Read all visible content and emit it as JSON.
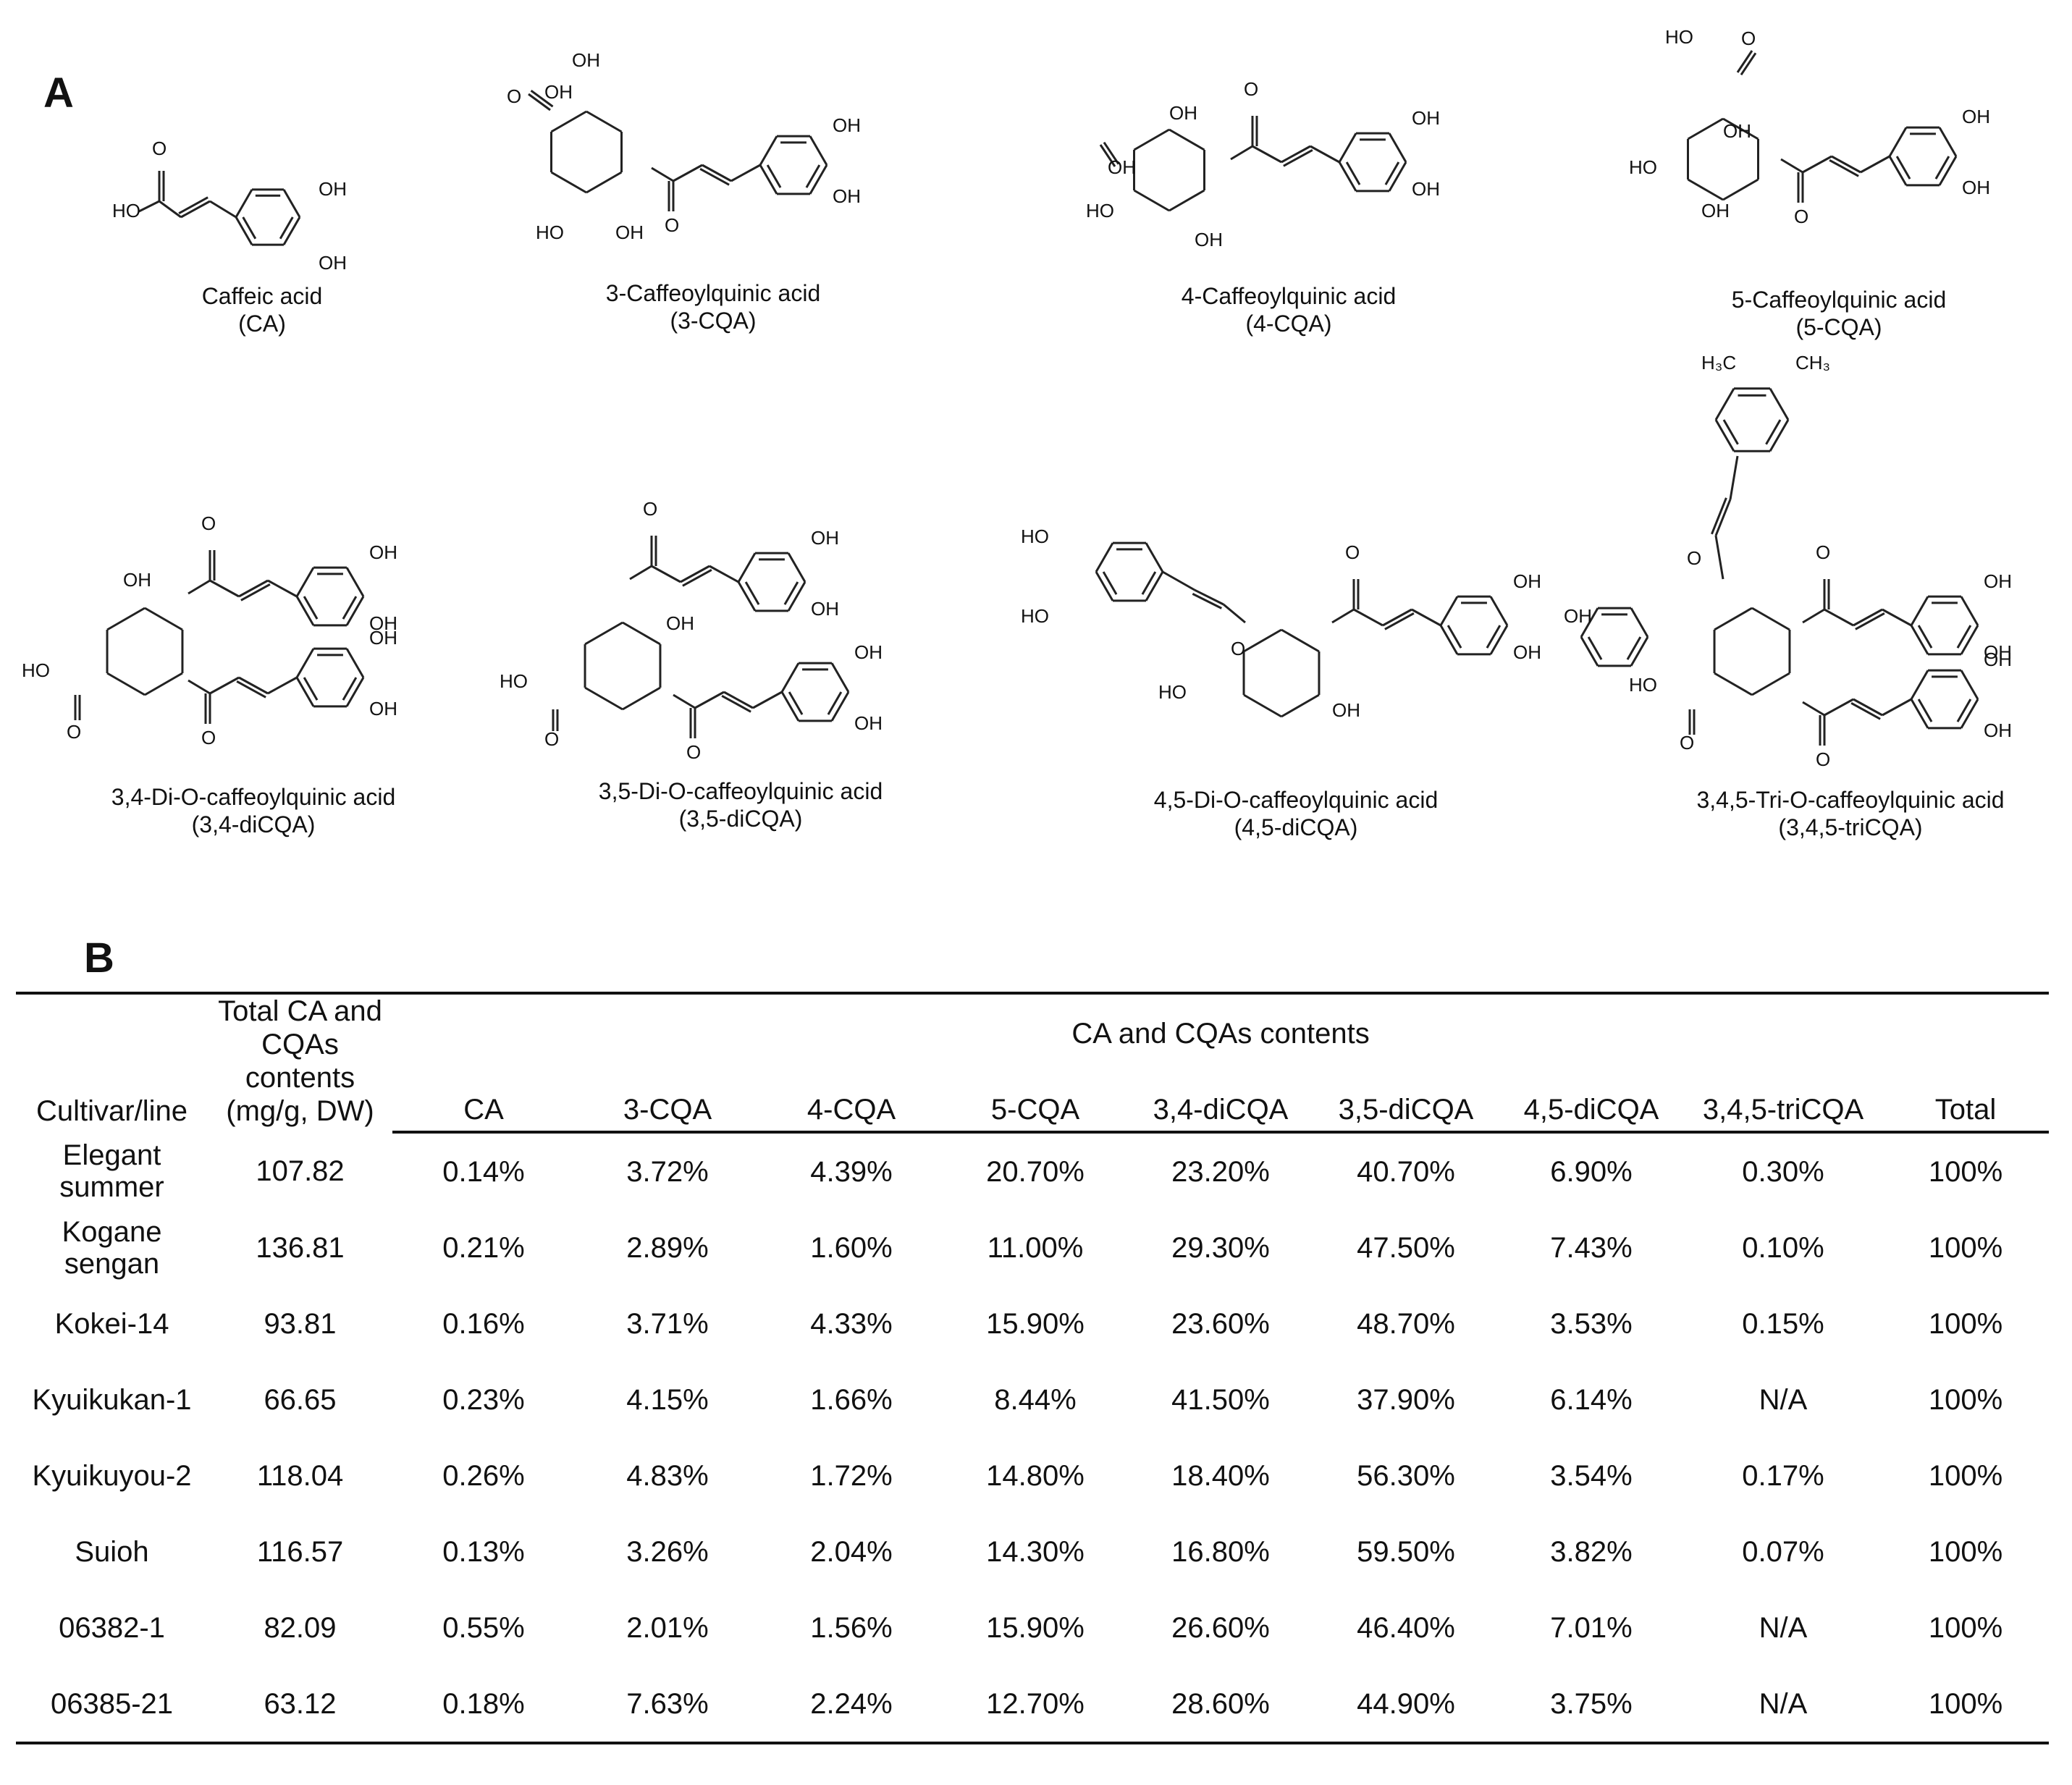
{
  "panel_a": {
    "label": "A",
    "compounds": [
      {
        "name": "Caffeic acid",
        "abbr": "(CA)"
      },
      {
        "name": "3-Caffeoylquinic acid",
        "abbr": "(3-CQA)"
      },
      {
        "name": "4-Caffeoylquinic acid",
        "abbr": "(4-CQA)"
      },
      {
        "name": "5-Caffeoylquinic acid",
        "abbr": "(5-CQA)"
      },
      {
        "name": "3,4-Di-O-caffeoylquinic acid",
        "abbr": "(3,4-diCQA)"
      },
      {
        "name": "3,5-Di-O-caffeoylquinic acid",
        "abbr": "(3,5-diCQA)"
      },
      {
        "name": "4,5-Di-O-caffeoylquinic acid",
        "abbr": "(4,5-diCQA)"
      },
      {
        "name": "3,4,5-Tri-O-caffeoylquinic acid",
        "abbr": "(3,4,5-triCQA)"
      }
    ],
    "atom_labels": {
      "oh": "OH",
      "ho": "HO",
      "o": "O",
      "ch3": "CH₃",
      "h3c": "H₃C"
    }
  },
  "panel_b": {
    "label": "B",
    "table": {
      "col_cultivar": "Cultivar/line",
      "col_total": "Total CA and CQAs contents (mg/g, DW)",
      "group_header": "CA and CQAs contents",
      "columns": [
        "CA",
        "3-CQA",
        "4-CQA",
        "5-CQA",
        "3,4-diCQA",
        "3,5-diCQA",
        "4,5-diCQA",
        "3,4,5-triCQA",
        "Total"
      ],
      "rows": [
        {
          "cultivar": "Elegant summer",
          "total": "107.82",
          "values": [
            "0.14%",
            "3.72%",
            "4.39%",
            "20.70%",
            "23.20%",
            "40.70%",
            "6.90%",
            "0.30%",
            "100%"
          ]
        },
        {
          "cultivar": "Kogane sengan",
          "total": "136.81",
          "values": [
            "0.21%",
            "2.89%",
            "1.60%",
            "11.00%",
            "29.30%",
            "47.50%",
            "7.43%",
            "0.10%",
            "100%"
          ]
        },
        {
          "cultivar": "Kokei-14",
          "total": "93.81",
          "values": [
            "0.16%",
            "3.71%",
            "4.33%",
            "15.90%",
            "23.60%",
            "48.70%",
            "3.53%",
            "0.15%",
            "100%"
          ]
        },
        {
          "cultivar": "Kyuikukan-1",
          "total": "66.65",
          "values": [
            "0.23%",
            "4.15%",
            "1.66%",
            "8.44%",
            "41.50%",
            "37.90%",
            "6.14%",
            "N/A",
            "100%"
          ]
        },
        {
          "cultivar": "Kyuikuyou-2",
          "total": "118.04",
          "values": [
            "0.26%",
            "4.83%",
            "1.72%",
            "14.80%",
            "18.40%",
            "56.30%",
            "3.54%",
            "0.17%",
            "100%"
          ]
        },
        {
          "cultivar": "Suioh",
          "total": "116.57",
          "values": [
            "0.13%",
            "3.26%",
            "2.04%",
            "14.30%",
            "16.80%",
            "59.50%",
            "3.82%",
            "0.07%",
            "100%"
          ]
        },
        {
          "cultivar": "06382-1",
          "total": "82.09",
          "values": [
            "0.55%",
            "2.01%",
            "1.56%",
            "15.90%",
            "26.60%",
            "46.40%",
            "7.01%",
            "N/A",
            "100%"
          ]
        },
        {
          "cultivar": "06385-21",
          "total": "63.12",
          "values": [
            "0.18%",
            "7.63%",
            "2.24%",
            "12.70%",
            "28.60%",
            "44.90%",
            "3.75%",
            "N/A",
            "100%"
          ]
        }
      ]
    }
  }
}
